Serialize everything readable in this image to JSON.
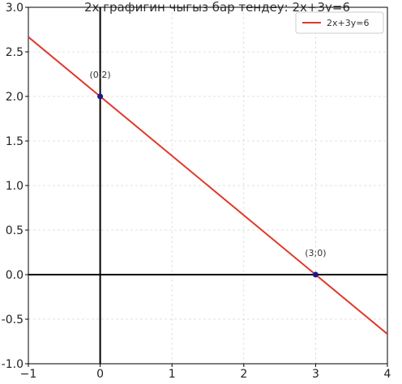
{
  "chart_data": {
    "type": "line",
    "title": "2x графигин чыгыз бар тендеу: 2x+3y=6",
    "xlabel": "",
    "ylabel": "",
    "xlim": [
      -1,
      4
    ],
    "ylim": [
      -1,
      3
    ],
    "xticks": [
      -1,
      0,
      1,
      2,
      3,
      4
    ],
    "yticks": [
      -1.0,
      -0.5,
      0.0,
      0.5,
      1.0,
      1.5,
      2.0,
      2.5,
      3.0
    ],
    "xtick_labels": [
      "−1",
      "0",
      "1",
      "2",
      "3",
      "4"
    ],
    "ytick_labels": [
      "-1.0",
      "-0.5",
      "0.0",
      "0.5",
      "1.0",
      "1.5",
      "2.0",
      "2.5",
      "3.0"
    ],
    "grid": true,
    "legend_position": "top-right",
    "series": [
      {
        "name": "2x+3y=6",
        "color": "#e0382a",
        "x": [
          -1,
          4
        ],
        "y": [
          2.6667,
          -0.6667
        ]
      }
    ],
    "points": [
      {
        "x": 0,
        "y": 2,
        "label": "(0;2)",
        "color": "#1a1a8c"
      },
      {
        "x": 3,
        "y": 0,
        "label": "(3;0)",
        "color": "#1a1a8c"
      }
    ]
  }
}
